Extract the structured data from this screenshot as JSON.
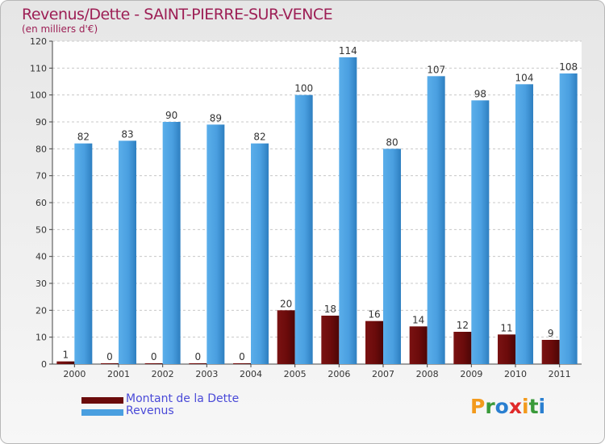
{
  "chart_data": {
    "type": "bar",
    "title": "Revenus/Dette - SAINT-PIERRE-SUR-VENCE",
    "subtitle": "(en milliers d'€)",
    "categories": [
      "2000",
      "2001",
      "2002",
      "2003",
      "2004",
      "2005",
      "2006",
      "2007",
      "2008",
      "2009",
      "2010",
      "2011"
    ],
    "series": [
      {
        "name": "Montant de la Dette",
        "color": "#6b0b0b",
        "values": [
          1,
          0,
          0,
          0,
          0,
          20,
          18,
          16,
          14,
          12,
          11,
          9
        ]
      },
      {
        "name": "Revenus",
        "color": "#4a9fe0",
        "values": [
          82,
          83,
          90,
          89,
          82,
          100,
          114,
          80,
          107,
          98,
          104,
          108
        ]
      }
    ],
    "ylim": [
      0,
      120
    ],
    "yticks": [
      0,
      10,
      20,
      30,
      40,
      50,
      60,
      70,
      80,
      90,
      100,
      110,
      120
    ],
    "grid": true,
    "legend": "bottom-left"
  },
  "logo": {
    "letters": [
      "P",
      "r",
      "o",
      "x",
      "i",
      "t",
      "i"
    ],
    "colors": [
      "#f39a1c",
      "#3a9a3a",
      "#2a7fd0",
      "#e02a2a",
      "#f39a1c",
      "#3a9a3a",
      "#2a7fd0"
    ]
  }
}
